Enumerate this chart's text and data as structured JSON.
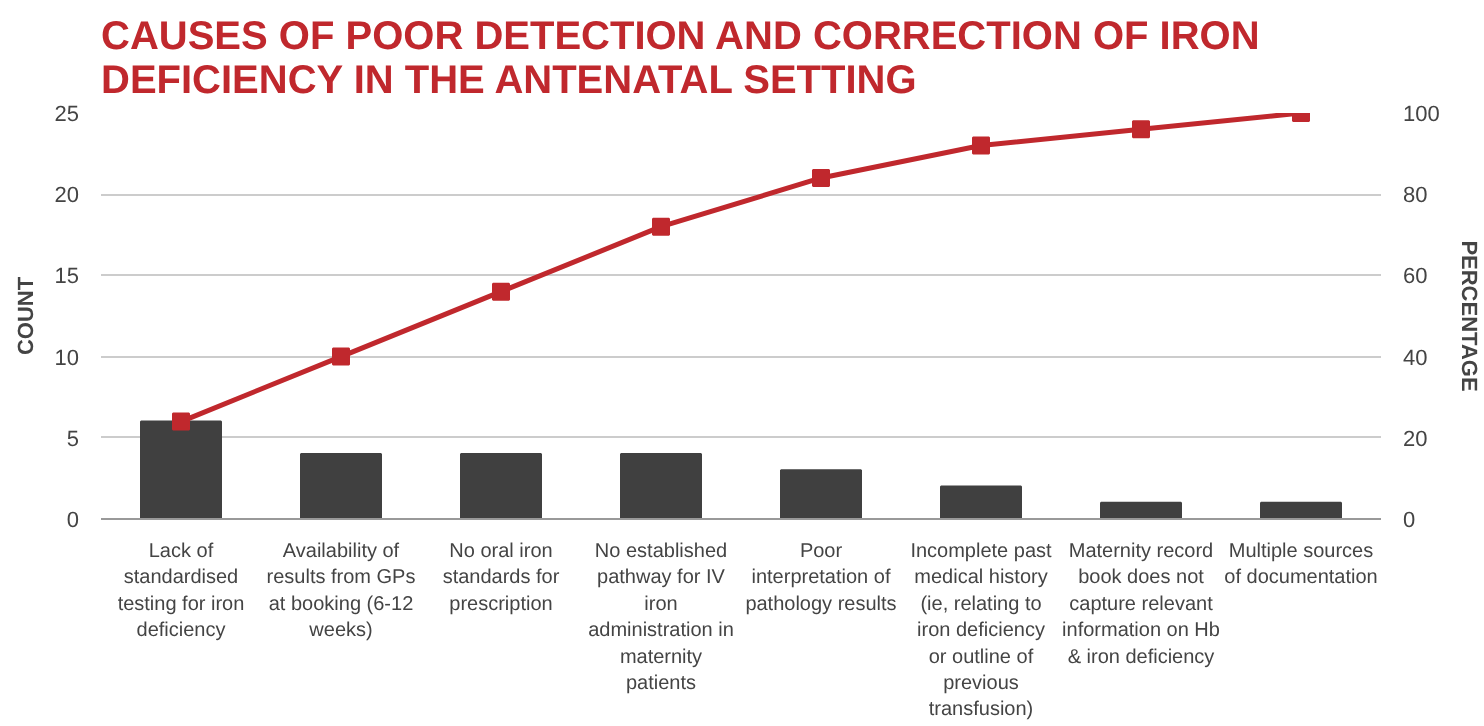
{
  "chart_data": {
    "type": "bar",
    "title": "CAUSES OF POOR DETECTION AND CORRECTION OF IRON DEFICIENCY IN THE ANTENATAL SETTING",
    "categories": [
      "Lack of standardised testing for iron deficiency",
      "Availability of results from GPs at booking (6-12 weeks)",
      "No oral iron standards for prescription",
      "No established pathway for IV iron administration in maternity patients",
      "Poor interpretation of pathology results",
      "Incomplete past medical history (ie, relating to iron deficiency or outline of previous transfusion)",
      "Maternity record book does not capture relevant information on Hb & iron deficiency",
      "Multiple sources of documentation"
    ],
    "series": [
      {
        "color": "#404040",
        "values": [
          6,
          4,
          4,
          4,
          3,
          2,
          1,
          1
        ]
      },
      {
        "type": "line",
        "axis": "y2",
        "color": "#c0282d",
        "values": [
          24,
          40,
          56,
          72,
          84,
          92,
          96,
          100
        ]
      }
    ],
    "ylabel": "COUNT",
    "y2label": "PERCENTAGE",
    "ylim": [
      0,
      25
    ],
    "yticks": [
      0,
      5,
      10,
      15,
      20,
      25
    ],
    "y2lim": [
      0,
      100
    ],
    "y2ticks": [
      0,
      20,
      40,
      60,
      80,
      100
    ],
    "grid": "y",
    "marker": "square",
    "line_style": "solid"
  }
}
